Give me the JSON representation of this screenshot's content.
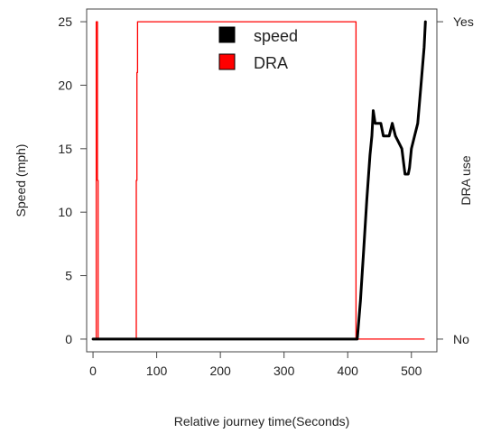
{
  "chart_data": {
    "type": "line",
    "title": "",
    "xlabel": "Relative journey time(Seconds)",
    "ylabel": "Speed (mph)",
    "y2label": "DRA use",
    "xlim": [
      -10,
      540
    ],
    "ylim": [
      -1,
      26
    ],
    "xticks": [
      0,
      100,
      200,
      300,
      400,
      500
    ],
    "yticks": [
      0,
      5,
      10,
      15,
      20,
      25
    ],
    "y2ticks": [
      {
        "value": 0,
        "label": "No"
      },
      {
        "value": 25,
        "label": "Yes"
      }
    ],
    "grid": false,
    "legend_position": "top-center",
    "series": [
      {
        "name": "speed",
        "color": "#000000",
        "axis": "left",
        "x": [
          0,
          100,
          200,
          300,
          400,
          415,
          420,
          425,
          430,
          435,
          438,
          440,
          443,
          447,
          452,
          456,
          460,
          465,
          470,
          475,
          480,
          485,
          490,
          495,
          497,
          500,
          505,
          510,
          515,
          520,
          522
        ],
        "y": [
          0,
          0,
          0,
          0,
          0,
          0,
          3,
          7,
          11,
          14.5,
          16,
          18,
          17,
          17,
          17,
          16,
          16,
          16,
          17,
          16,
          15.5,
          15,
          13,
          13,
          13.5,
          15,
          16,
          17,
          20,
          23,
          25
        ]
      },
      {
        "name": "DRA",
        "color": "#ff0000",
        "axis": "right",
        "x": [
          0,
          5,
          5,
          7,
          7,
          8,
          8,
          10,
          10,
          68,
          68,
          69,
          69,
          70,
          70,
          72,
          72,
          413,
          413,
          415,
          415,
          520
        ],
        "y": [
          0,
          0,
          25,
          25,
          12.5,
          12.5,
          0,
          0,
          0,
          0,
          12.5,
          12.5,
          21,
          21,
          25,
          25,
          25,
          25,
          0,
          0,
          0,
          0
        ]
      }
    ]
  }
}
